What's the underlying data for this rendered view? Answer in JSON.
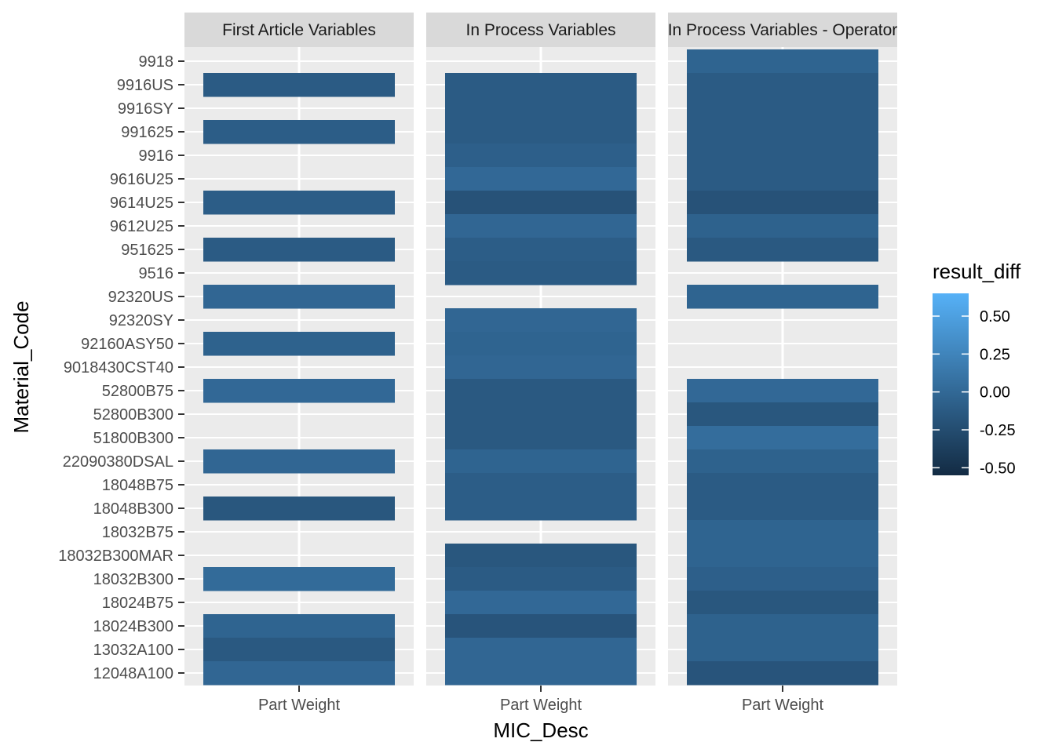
{
  "chart_data": {
    "type": "heatmap",
    "xlabel": "MIC_Desc",
    "ylabel": "Material_Code",
    "x_category": "Part Weight",
    "y_categories": [
      "9918",
      "9916US",
      "9916SY",
      "991625",
      "9916",
      "9616U25",
      "9614U25",
      "9612U25",
      "951625",
      "9516",
      "92320US",
      "92320SY",
      "92160ASY50",
      "9018430CST40",
      "52800B75",
      "52800B300",
      "51800B300",
      "22090380DSAL",
      "18048B75",
      "18048B300",
      "18032B75",
      "18032B300MAR",
      "18032B300",
      "18024B75",
      "18024B300",
      "13032A100",
      "12048A100"
    ],
    "panels": [
      {
        "strip": "First Article Variables",
        "cells": {
          "9916US": -0.12,
          "991625": -0.1,
          "9614U25": -0.1,
          "951625": -0.12,
          "92320US": -0.02,
          "92160ASY50": -0.06,
          "52800B75": 0.0,
          "22090380DSAL": -0.02,
          "18048B300": -0.16,
          "18032B300": 0.02,
          "18024B300": -0.04,
          "13032A100": -0.14,
          "12048A100": -0.02
        }
      },
      {
        "strip": "In Process Variables",
        "cells": {
          "9916US": -0.12,
          "9916SY": -0.12,
          "991625": -0.12,
          "9916": -0.08,
          "9616U25": 0.0,
          "9614U25": -0.2,
          "9612U25": -0.02,
          "951625": -0.1,
          "9516": -0.12,
          "92320SY": -0.02,
          "92160ASY50": -0.04,
          "9018430CST40": -0.02,
          "52800B75": -0.14,
          "52800B300": -0.14,
          "51800B300": -0.14,
          "22090380DSAL": -0.04,
          "18048B75": -0.1,
          "18048B300": -0.1,
          "18032B300MAR": -0.16,
          "18032B300": -0.12,
          "18024B75": 0.0,
          "18024B300": -0.18,
          "13032A100": -0.02,
          "12048A100": -0.02
        }
      },
      {
        "strip": "In Process Variables - Operator",
        "cells": {
          "9918": -0.04,
          "9916US": -0.12,
          "9916SY": -0.12,
          "991625": -0.12,
          "9916": -0.12,
          "9616U25": -0.12,
          "9614U25": -0.2,
          "9612U25": -0.06,
          "951625": -0.14,
          "92320US": -0.04,
          "52800B75": 0.0,
          "52800B300": -0.16,
          "51800B300": 0.04,
          "22090380DSAL": -0.06,
          "18048B75": -0.12,
          "18048B300": -0.12,
          "18032B75": -0.04,
          "18032B300MAR": -0.04,
          "18032B300": -0.08,
          "18024B75": -0.16,
          "18024B300": -0.06,
          "13032A100": -0.06,
          "12048A100": -0.18
        }
      }
    ],
    "legend": {
      "title": "result_diff",
      "ticks": [
        "0.50",
        "0.25",
        "0.00",
        "-0.25",
        "-0.50"
      ],
      "tick_values": [
        0.5,
        0.25,
        0,
        -0.25,
        -0.5
      ],
      "range": [
        -0.55,
        0.65
      ],
      "low_color": "#132B43",
      "high_color": "#56B1F7"
    },
    "panel_background": "#ebebeb",
    "strip_background": "#d9d9d9",
    "grid": true,
    "legend_position": "right"
  }
}
